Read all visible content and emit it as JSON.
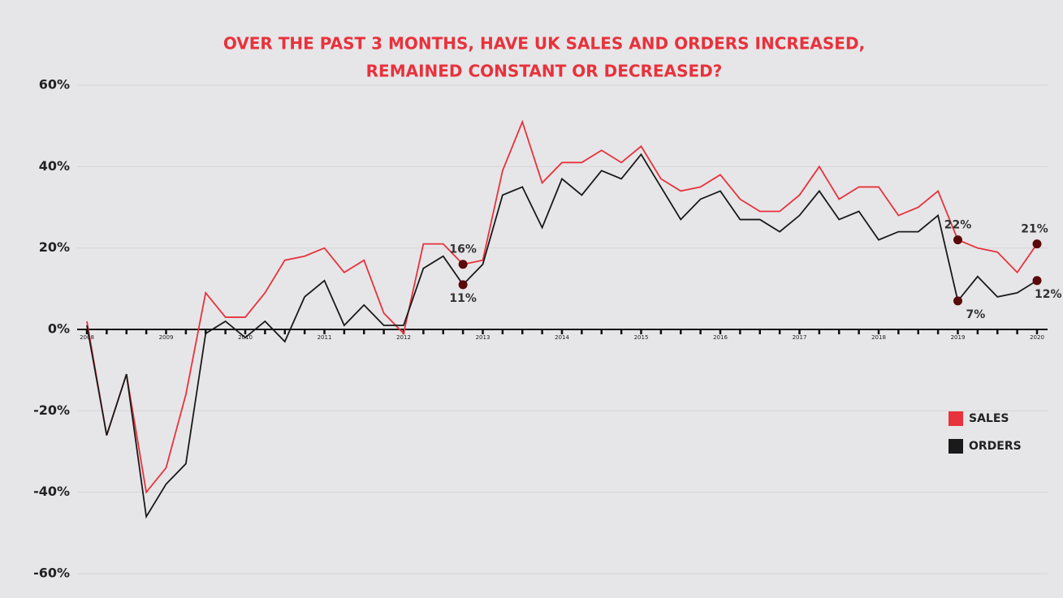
{
  "chart_data": {
    "type": "line",
    "title": [
      "OVER THE PAST 3 MONTHS, HAVE UK SALES AND ORDERS INCREASED,",
      "REMAINED CONSTANT OR DECREASED?"
    ],
    "x": [
      2008,
      2008.25,
      2008.5,
      2008.75,
      2009,
      2009.25,
      2009.5,
      2009.75,
      2010,
      2010.25,
      2010.5,
      2010.75,
      2011,
      2011.25,
      2011.5,
      2011.75,
      2012,
      2012.25,
      2012.5,
      2012.75,
      2013,
      2013.25,
      2013.5,
      2013.75,
      2014,
      2014.25,
      2014.5,
      2014.75,
      2015,
      2015.25,
      2015.5,
      2015.75,
      2016,
      2016.25,
      2016.5,
      2016.75,
      2017,
      2017.25,
      2017.5,
      2017.75,
      2018,
      2018.25,
      2018.5,
      2018.75,
      2019,
      2019.25,
      2019.5,
      2019.75,
      2020
    ],
    "series": [
      {
        "name": "SALES",
        "color": "#e8323c",
        "values": [
          2,
          -26,
          -11,
          -40,
          -34,
          -16,
          9,
          3,
          3,
          9,
          17,
          18,
          20,
          14,
          17,
          4,
          -1,
          21,
          21,
          16,
          17,
          39,
          51,
          36,
          41,
          41,
          44,
          41,
          45,
          37,
          34,
          35,
          38,
          32,
          29,
          29,
          33,
          40,
          32,
          35,
          35,
          28,
          30,
          34,
          22,
          20,
          19,
          14,
          21
        ],
        "value_labels": [
          null,
          null,
          null,
          null,
          null,
          null,
          null,
          null,
          null,
          null,
          null,
          null,
          null,
          null,
          null,
          null,
          null,
          null,
          null,
          "16%",
          null,
          null,
          null,
          null,
          null,
          null,
          null,
          null,
          null,
          null,
          null,
          null,
          null,
          null,
          null,
          null,
          null,
          null,
          null,
          null,
          null,
          null,
          null,
          null,
          "22%",
          null,
          null,
          null,
          "21%"
        ]
      },
      {
        "name": "ORDERS",
        "color": "#1a1a1a",
        "values": [
          1,
          -26,
          -11,
          -46,
          -38,
          -33,
          -1,
          2,
          -2,
          2,
          -3,
          8,
          12,
          1,
          6,
          1,
          1,
          15,
          18,
          11,
          16,
          33,
          35,
          25,
          37,
          33,
          39,
          37,
          43,
          35,
          27,
          32,
          34,
          27,
          27,
          24,
          28,
          34,
          27,
          29,
          22,
          24,
          24,
          28,
          7,
          13,
          8,
          9,
          12
        ],
        "value_labels": [
          null,
          null,
          null,
          null,
          null,
          null,
          null,
          null,
          null,
          null,
          null,
          null,
          null,
          null,
          null,
          null,
          null,
          null,
          null,
          "11%",
          null,
          null,
          null,
          null,
          null,
          null,
          null,
          null,
          null,
          null,
          null,
          null,
          null,
          null,
          null,
          null,
          null,
          null,
          null,
          null,
          null,
          null,
          null,
          null,
          "7%",
          null,
          null,
          null,
          "12%"
        ]
      }
    ],
    "xlim": [
      2008,
      2020
    ],
    "xticks": [
      2008,
      2009,
      2010,
      2011,
      2012,
      2013,
      2014,
      2015,
      2016,
      2017,
      2018,
      2019,
      2020
    ],
    "ylim": [
      -60,
      60
    ],
    "yticks": [
      {
        "value": -60,
        "label": "-60%"
      },
      {
        "value": -40,
        "label": "-40%"
      },
      {
        "value": -20,
        "label": "-20%"
      },
      {
        "value": 0,
        "label": "0%"
      },
      {
        "value": 20,
        "label": "20%"
      },
      {
        "value": 40,
        "label": "40%"
      },
      {
        "value": 60,
        "label": "60%"
      }
    ],
    "grid": true,
    "legend": "right"
  }
}
